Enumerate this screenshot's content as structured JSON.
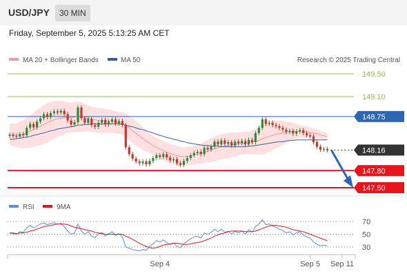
{
  "header": {
    "symbol": "USD/JPY",
    "timeframe": "30 MIN",
    "datetime": "Friday, September 5, 2025 5:13:25 AM CET"
  },
  "legend": {
    "ma20_bb": "MA 20 + Bollinger Bands",
    "ma50": "MA 50",
    "credit": "Research © 2025 Trading Central",
    "rsi": "RSI",
    "rsi_ma": "9MA"
  },
  "colors": {
    "up": "#2b8a3e",
    "down": "#c0392b",
    "bollinger": "#fdd5d5",
    "ma20": "#f29a9a",
    "ma50": "#3a5fa0",
    "resistance": "#8bc34a",
    "pivot": "#2f66b3",
    "support": "#e8141b",
    "current": "#333333",
    "rsi": "#5b8fd6",
    "rsi_ma": "#e0141b"
  },
  "chart_data": [
    {
      "type": "candlestick",
      "title": "USD/JPY 30 MIN",
      "ylim": [
        147.35,
        149.65
      ],
      "levels": [
        {
          "value": 149.5,
          "label": "149.50",
          "kind": "resistance"
        },
        {
          "value": 149.1,
          "label": "149.10",
          "kind": "resistance"
        },
        {
          "value": 148.75,
          "label": "148.75",
          "kind": "pivot"
        },
        {
          "value": 148.16,
          "label": "148.16",
          "kind": "current"
        },
        {
          "value": 147.8,
          "label": "147.80",
          "kind": "support"
        },
        {
          "value": 147.5,
          "label": "147.50",
          "kind": "support"
        }
      ],
      "x_ticks": [
        {
          "index": 44,
          "label": "Sep 4"
        },
        {
          "index": 88,
          "label": "Sep 5"
        },
        {
          "index": 100,
          "label": "Sep 11"
        }
      ],
      "close": [
        148.43,
        148.41,
        148.4,
        148.44,
        148.42,
        148.55,
        148.62,
        148.56,
        148.66,
        148.72,
        148.79,
        148.74,
        148.81,
        148.84,
        148.82,
        148.85,
        148.79,
        148.68,
        148.61,
        148.65,
        148.91,
        148.72,
        148.64,
        148.71,
        148.6,
        148.57,
        148.64,
        148.69,
        148.61,
        148.66,
        148.7,
        148.63,
        148.67,
        148.6,
        148.21,
        148.09,
        148.01,
        147.96,
        147.93,
        147.96,
        147.91,
        147.97,
        148.02,
        148.07,
        148.04,
        148.09,
        148.03,
        147.98,
        148.0,
        147.93,
        147.9,
        147.97,
        148.02,
        148.07,
        148.11,
        148.13,
        148.09,
        148.2,
        148.17,
        148.22,
        148.31,
        148.26,
        148.33,
        148.27,
        148.3,
        148.24,
        148.31,
        148.28,
        148.32,
        148.26,
        148.34,
        148.3,
        148.46,
        148.55,
        148.7,
        148.62,
        148.64,
        148.6,
        148.58,
        148.55,
        148.52,
        148.48,
        148.5,
        148.45,
        148.49,
        148.51,
        148.46,
        148.42,
        148.4,
        148.3,
        148.22,
        148.17,
        148.18,
        148.16
      ],
      "bb_upper": [
        148.62,
        148.63,
        148.63,
        148.66,
        148.69,
        148.74,
        148.78,
        148.82,
        148.87,
        148.91,
        148.95,
        148.99,
        149.01,
        149.02,
        149.03,
        149.03,
        149.02,
        149.0,
        148.99,
        149.0,
        149.02,
        149.0,
        148.97,
        148.95,
        148.92,
        148.91,
        148.9,
        148.9,
        148.88,
        148.88,
        148.86,
        148.84,
        148.83,
        148.83,
        148.8,
        148.76,
        148.72,
        148.67,
        148.62,
        148.56,
        148.5,
        148.45,
        148.41,
        148.38,
        148.35,
        148.32,
        148.29,
        148.27,
        148.25,
        148.23,
        148.22,
        148.21,
        148.21,
        148.22,
        148.24,
        148.26,
        148.28,
        148.31,
        148.34,
        148.37,
        148.4,
        148.42,
        148.44,
        148.45,
        148.46,
        148.47,
        148.47,
        148.47,
        148.48,
        148.48,
        148.49,
        148.51,
        148.54,
        148.58,
        148.64,
        148.66,
        148.67,
        148.68,
        148.68,
        148.68,
        148.67,
        148.66,
        148.65,
        148.64,
        148.62,
        148.6,
        148.59,
        148.58,
        148.56,
        148.54,
        148.52,
        148.5,
        148.48,
        148.46
      ],
      "ma20": [
        148.43,
        148.43,
        148.42,
        148.43,
        148.44,
        148.47,
        148.49,
        148.52,
        148.55,
        148.58,
        148.61,
        148.64,
        148.67,
        148.69,
        148.71,
        148.72,
        148.73,
        148.73,
        148.73,
        148.74,
        148.75,
        148.74,
        148.73,
        148.72,
        148.7,
        148.69,
        148.68,
        148.68,
        148.67,
        148.67,
        148.66,
        148.65,
        148.64,
        148.63,
        148.59,
        148.55,
        148.5,
        148.45,
        148.41,
        148.36,
        148.32,
        148.28,
        148.24,
        148.21,
        148.18,
        148.15,
        148.12,
        148.1,
        148.08,
        148.06,
        148.05,
        148.05,
        148.05,
        148.06,
        148.07,
        148.09,
        148.1,
        148.12,
        148.14,
        148.16,
        148.18,
        148.2,
        148.22,
        148.23,
        148.24,
        148.25,
        148.26,
        148.27,
        148.28,
        148.28,
        148.29,
        148.3,
        148.31,
        148.33,
        148.36,
        148.38,
        148.4,
        148.42,
        148.44,
        148.45,
        148.46,
        148.47,
        148.48,
        148.49,
        148.49,
        148.49,
        148.48,
        148.48,
        148.47,
        148.46,
        148.45,
        148.43,
        148.41,
        148.4
      ],
      "bb_lower": [
        148.24,
        148.23,
        148.21,
        148.2,
        148.19,
        148.2,
        148.2,
        148.22,
        148.23,
        148.25,
        148.27,
        148.29,
        148.33,
        148.36,
        148.39,
        148.41,
        148.44,
        148.46,
        148.47,
        148.48,
        148.48,
        148.48,
        148.49,
        148.49,
        148.48,
        148.47,
        148.46,
        148.46,
        148.46,
        148.46,
        148.46,
        148.46,
        148.45,
        148.43,
        148.38,
        148.34,
        148.28,
        148.23,
        148.2,
        148.16,
        148.14,
        148.11,
        148.07,
        148.04,
        148.01,
        147.98,
        147.95,
        147.93,
        147.91,
        147.89,
        147.88,
        147.89,
        147.89,
        147.9,
        147.9,
        147.92,
        147.92,
        147.93,
        147.94,
        147.95,
        147.96,
        147.98,
        148.0,
        148.01,
        148.02,
        148.03,
        148.05,
        148.07,
        148.08,
        148.08,
        148.09,
        148.09,
        148.08,
        148.08,
        148.08,
        148.1,
        148.13,
        148.16,
        148.2,
        148.22,
        148.25,
        148.28,
        148.31,
        148.34,
        148.36,
        148.38,
        148.37,
        148.38,
        148.38,
        148.38,
        148.38,
        148.36,
        148.34,
        148.34
      ],
      "ma50": [
        148.35,
        148.35,
        148.36,
        148.37,
        148.38,
        148.39,
        148.4,
        148.42,
        148.43,
        148.45,
        148.46,
        148.48,
        148.5,
        148.51,
        148.53,
        148.54,
        148.55,
        148.56,
        148.57,
        148.58,
        148.6,
        148.6,
        148.61,
        148.61,
        148.62,
        148.62,
        148.62,
        148.62,
        148.62,
        148.62,
        148.62,
        148.62,
        148.62,
        148.61,
        148.6,
        148.58,
        148.57,
        148.55,
        148.53,
        148.52,
        148.5,
        148.48,
        148.46,
        148.44,
        148.42,
        148.4,
        148.38,
        148.37,
        148.35,
        148.34,
        148.32,
        148.31,
        148.29,
        148.28,
        148.27,
        148.26,
        148.25,
        148.24,
        148.24,
        148.23,
        148.23,
        148.23,
        148.22,
        148.22,
        148.22,
        148.22,
        148.22,
        148.22,
        148.22,
        148.22,
        148.23,
        148.23,
        148.24,
        148.25,
        148.26,
        148.27,
        148.28,
        148.29,
        148.3,
        148.31,
        148.31,
        148.32,
        148.33,
        148.33,
        148.34,
        148.34,
        148.34,
        148.34,
        148.34,
        148.34,
        148.34,
        148.34,
        148.34,
        148.34
      ]
    },
    {
      "type": "line",
      "title": "RSI",
      "ylim": [
        20,
        80
      ],
      "yticks": [
        30,
        50,
        70
      ],
      "series": [
        {
          "name": "RSI",
          "values": [
            52,
            51,
            50,
            54,
            53,
            60,
            64,
            60,
            63,
            66,
            68,
            65,
            67,
            68,
            66,
            67,
            62,
            55,
            50,
            52,
            66,
            55,
            50,
            54,
            47,
            45,
            50,
            53,
            47,
            51,
            54,
            48,
            51,
            46,
            30,
            28,
            26,
            25,
            24,
            26,
            25,
            31,
            35,
            40,
            38,
            41,
            37,
            34,
            36,
            31,
            29,
            35,
            39,
            43,
            46,
            47,
            44,
            52,
            50,
            53,
            58,
            54,
            58,
            53,
            55,
            50,
            55,
            52,
            55,
            50,
            57,
            53,
            62,
            66,
            73,
            65,
            66,
            63,
            61,
            58,
            56,
            52,
            54,
            49,
            52,
            54,
            49,
            46,
            44,
            38,
            34,
            32,
            33,
            32
          ]
        },
        {
          "name": "9MA",
          "values": [
            52,
            52,
            51,
            52,
            52,
            53,
            55,
            56,
            58,
            60,
            62,
            63,
            64,
            65,
            66,
            66,
            66,
            65,
            63,
            61,
            60,
            59,
            57,
            56,
            55,
            53,
            52,
            51,
            50,
            50,
            50,
            50,
            50,
            50,
            47,
            45,
            42,
            39,
            36,
            33,
            31,
            29,
            28,
            29,
            31,
            33,
            34,
            35,
            36,
            36,
            35,
            34,
            34,
            35,
            36,
            37,
            38,
            40,
            42,
            44,
            47,
            49,
            51,
            52,
            54,
            55,
            55,
            55,
            55,
            54,
            54,
            54,
            55,
            57,
            59,
            61,
            63,
            64,
            64,
            63,
            62,
            61,
            59,
            57,
            56,
            55,
            54,
            52,
            50,
            48,
            46,
            44,
            42,
            40
          ]
        }
      ]
    }
  ]
}
